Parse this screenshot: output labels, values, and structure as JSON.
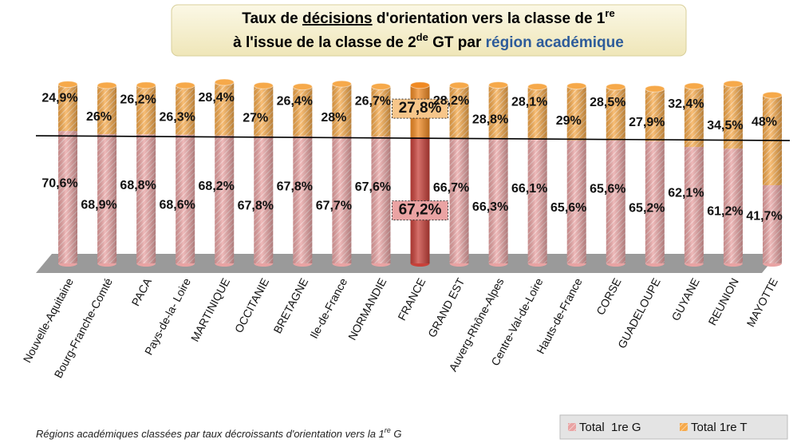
{
  "chart_data": {
    "type": "bar",
    "stacked": true,
    "title": [
      [
        "Taux de ",
        "décisions",
        " d'orientation vers la classe de 1",
        "re"
      ],
      [
        "à l'issue de la classe de 2",
        "de",
        " GT par ",
        "région académique"
      ]
    ],
    "footnote": [
      "Régions académiques classées par taux décroissants d'orientation vers la 1",
      "re",
      " G"
    ],
    "categories": [
      "Nouvelle-Aquitaine",
      "Bourg-Franche-Comté",
      "PACA",
      "Pays-de-la- Loire",
      "MARTINIQUE",
      "OCCITANIE",
      "BRETAGNE",
      "Ile-de-France",
      "NORMANDIE",
      "FRANCE",
      "GRAND EST",
      "Auverg-Rhône-Alpes",
      "Centre-Val-de-Loire",
      "Hauts-de-France",
      "CORSE",
      "GUADELOUPE",
      "GUYANE",
      "REUNION",
      "MAYOTTE"
    ],
    "highlight_index": 9,
    "ylim": [
      0,
      100
    ],
    "series": [
      {
        "name": "Total  1re G",
        "color": "#e9a3a3",
        "highlight_color": "#c8413a",
        "values": [
          70.6,
          68.9,
          68.8,
          68.6,
          68.2,
          67.8,
          67.8,
          67.7,
          67.6,
          67.2,
          66.7,
          66.3,
          66.1,
          65.6,
          65.6,
          65.2,
          62.1,
          61.2,
          41.7
        ],
        "value_labels": [
          "70,6%",
          "68,9%",
          "68,8%",
          "68,6%",
          "68,2%",
          "67,8%",
          "67,8%",
          "67,7%",
          "67,6%",
          "67,2%",
          "66,7%",
          "66,3%",
          "66,1%",
          "65,6%",
          "65,6%",
          "65,2%",
          "62,1%",
          "61,2%",
          "41,7%"
        ]
      },
      {
        "name": "Total 1re T",
        "color": "#f6a94a",
        "highlight_color": "#f08a24",
        "values": [
          24.9,
          26,
          26.2,
          26.3,
          28.4,
          27,
          26.4,
          28,
          26.7,
          27.8,
          28.2,
          28.8,
          28.1,
          29,
          28.5,
          27.9,
          32.4,
          34.5,
          48
        ],
        "value_labels": [
          "24,9%",
          "26%",
          "26,2%",
          "26,3%",
          "28,4%",
          "27%",
          "26,4%",
          "28%",
          "26,7%",
          "27,8%",
          "28,2%",
          "28,8%",
          "28,1%",
          "29%",
          "28,5%",
          "27,9%",
          "32,4%",
          "34,5%",
          "48%"
        ]
      }
    ]
  }
}
